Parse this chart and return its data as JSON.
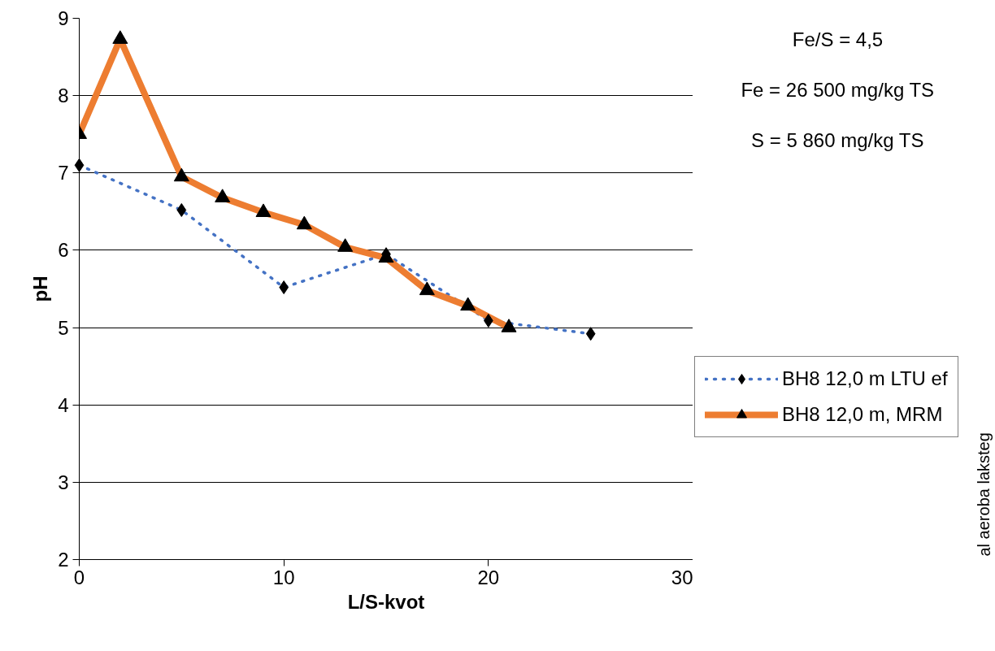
{
  "chart_data": {
    "type": "line",
    "xlabel": "L/S-kvot",
    "ylabel": "pH",
    "xlim": [
      0,
      30
    ],
    "xticks": [
      0,
      10,
      20,
      30
    ],
    "ylim": [
      2,
      9
    ],
    "yticks": [
      2,
      3,
      4,
      5,
      6,
      7,
      8,
      9
    ],
    "grid": "y",
    "legend": "right",
    "series": [
      {
        "name": "BH8 12,0 m LTU ef",
        "color": "#4472c4",
        "line_style": "dotted",
        "marker": "diamond",
        "x": [
          0,
          5,
          10,
          15,
          20,
          25
        ],
        "values": [
          7.1,
          6.52,
          5.52,
          5.95,
          5.09,
          4.92
        ]
      },
      {
        "name": "BH8 12,0 m, MRM",
        "color": "#ed7d31",
        "line_style": "solid",
        "marker": "triangle",
        "x": [
          0,
          2,
          5,
          7,
          9,
          11,
          13,
          15,
          17,
          19,
          21
        ],
        "values": [
          7.5,
          8.73,
          6.95,
          6.68,
          6.49,
          6.33,
          6.04,
          5.9,
          5.48,
          5.28,
          5.0
        ]
      }
    ],
    "annotations": [
      "Fe/S = 4,5",
      "Fe = 26 500 mg/kg TS",
      "S = 5 860 mg/kg TS",
      "al aeroba laksteg"
    ]
  }
}
